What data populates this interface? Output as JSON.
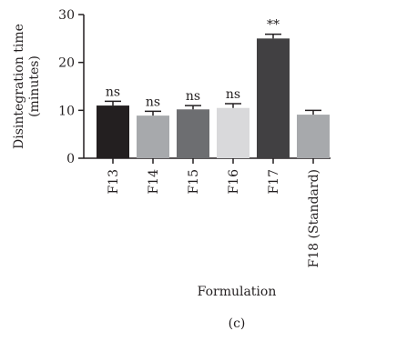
{
  "chart_data": {
    "type": "bar",
    "categories": [
      "F13",
      "F14",
      "F15",
      "F16",
      "F17",
      "F18 (Standard)"
    ],
    "values": [
      11.0,
      8.9,
      10.2,
      10.5,
      25.0,
      9.1
    ],
    "errors": [
      0.9,
      0.9,
      0.8,
      0.9,
      0.9,
      0.9
    ],
    "annotations": [
      "ns",
      "ns",
      "ns",
      "ns",
      "**",
      ""
    ],
    "colors": [
      "#231f20",
      "#a7a9ac",
      "#6d6e71",
      "#d9d9db",
      "#414042",
      "#a7a9ac"
    ],
    "title": "",
    "xlabel": "Formulation",
    "ylabel_line1": "Disintegration time",
    "ylabel_line2": "(minutes)",
    "ylim": [
      0,
      30
    ],
    "yticks": [
      0,
      10,
      20,
      30
    ],
    "grid": false
  },
  "panel_label": "(c)"
}
